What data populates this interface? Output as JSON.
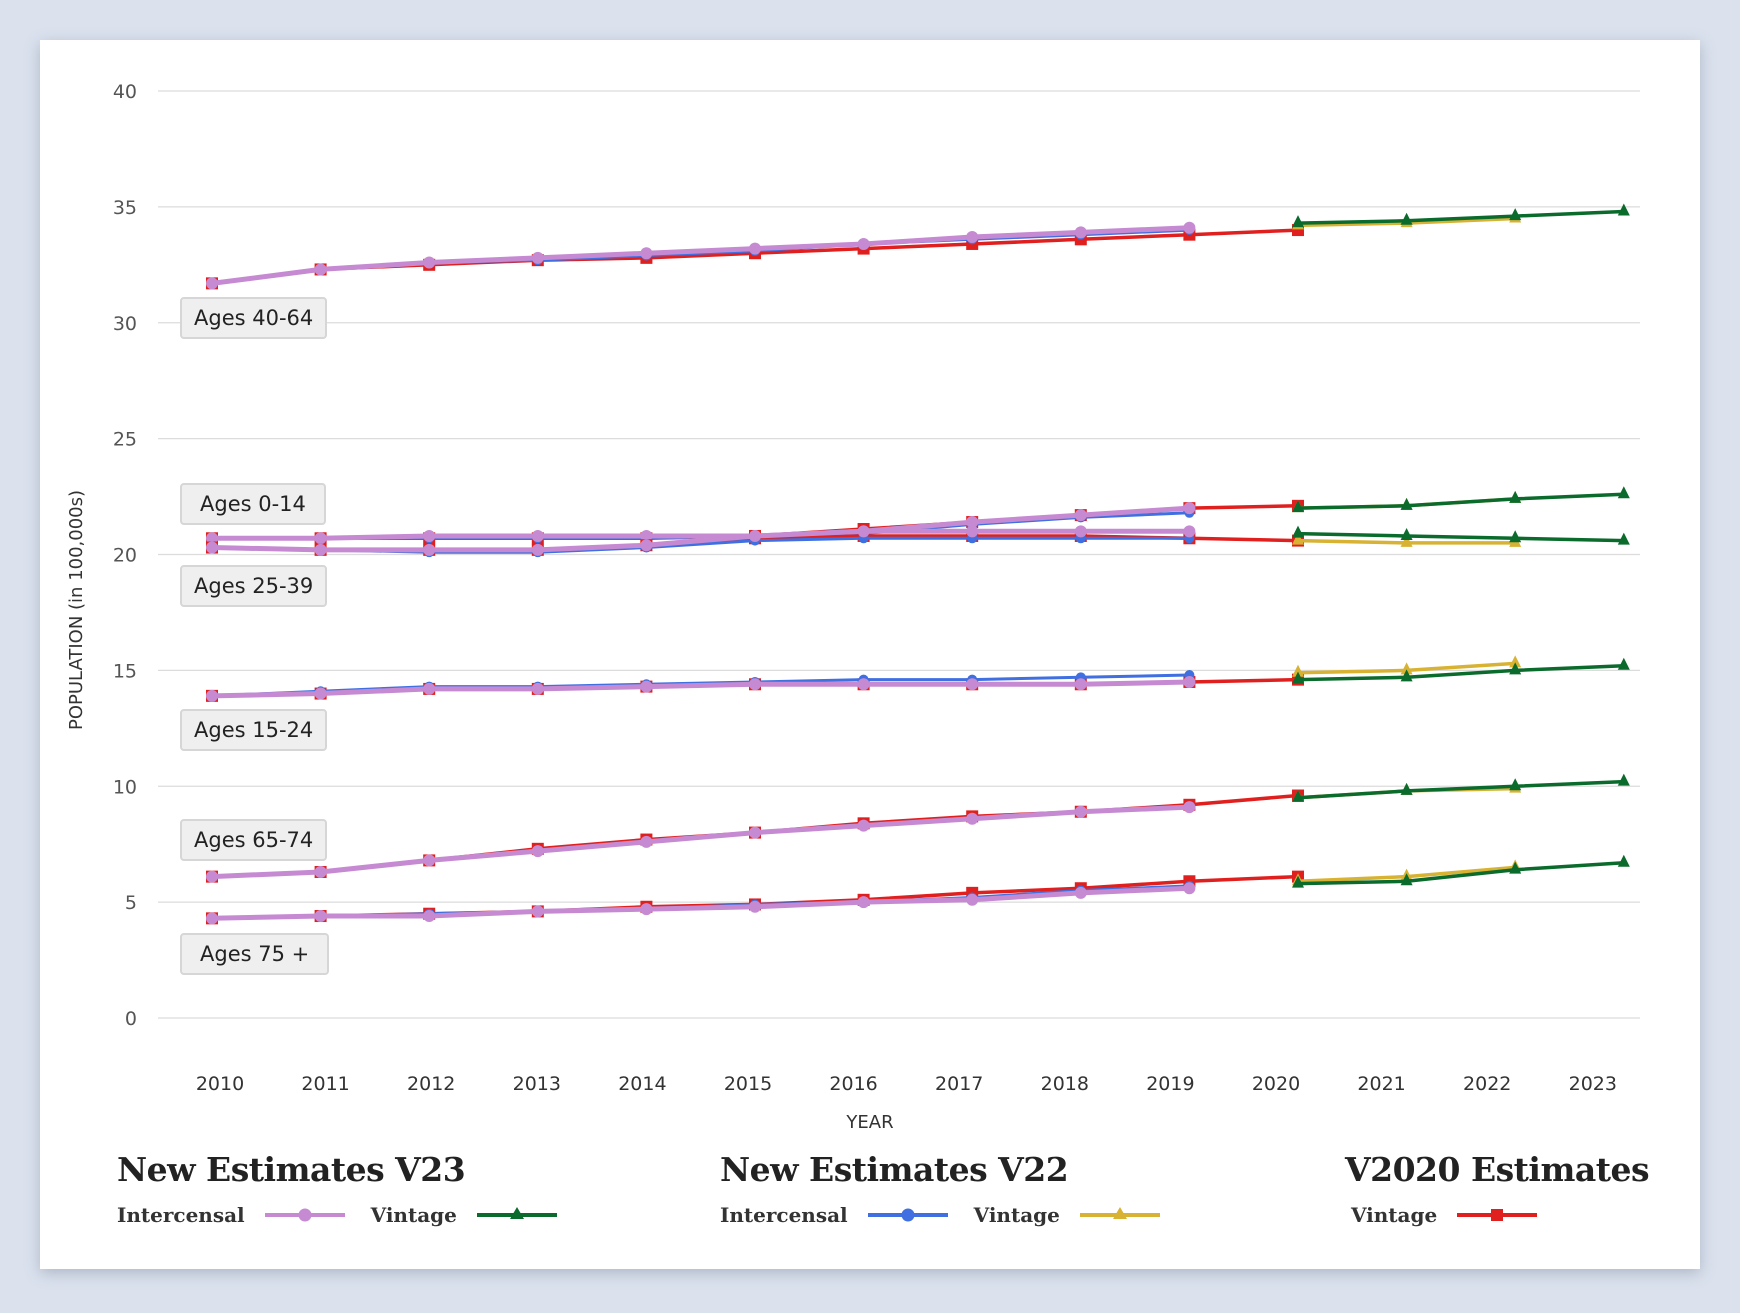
{
  "chart_data": {
    "type": "line",
    "title": "",
    "xlabel": "YEAR",
    "ylabel": "POPULATION (in 100,000s)",
    "ylim": [
      0,
      40
    ],
    "yticks": [
      0,
      5,
      10,
      15,
      20,
      25,
      30,
      35,
      40
    ],
    "x_tick_labels": [
      "2010",
      "2011",
      "2012",
      "2013",
      "2014",
      "2015",
      "2016",
      "2017",
      "2018",
      "2019",
      "2020",
      "2021",
      "2022",
      "2023"
    ],
    "grid": true,
    "legend_position": "bottom",
    "series_styles": {
      "v23_intercensal": {
        "name": "New Estimates V23 – Intercensal",
        "color": "#c58ad2",
        "marker": "circle"
      },
      "v23_vintage": {
        "name": "New Estimates V23 – Vintage",
        "color": "#0b6b2c",
        "marker": "triangle"
      },
      "v22_intercensal": {
        "name": "New Estimates V22 – Intercensal",
        "color": "#3f6fe0",
        "marker": "circle"
      },
      "v22_vintage": {
        "name": "New Estimates V22 – Vintage",
        "color": "#d8b232",
        "marker": "triangle"
      },
      "v2020_vintage": {
        "name": "V2020 Estimates – Vintage",
        "color": "#e0201f",
        "marker": "square"
      }
    },
    "groups": [
      {
        "label": "Ages 40-64",
        "series": {
          "v2020_vintage": {
            "x": [
              2010,
              2011,
              2012,
              2013,
              2014,
              2015,
              2016,
              2017,
              2018,
              2019,
              2020
            ],
            "y": [
              31.7,
              32.3,
              32.5,
              32.7,
              32.8,
              33.0,
              33.2,
              33.4,
              33.6,
              33.8,
              34.0
            ]
          },
          "v22_intercensal": {
            "x": [
              2010,
              2011,
              2012,
              2013,
              2014,
              2015,
              2016,
              2017,
              2018,
              2019
            ],
            "y": [
              31.7,
              32.3,
              32.6,
              32.7,
              32.9,
              33.1,
              33.4,
              33.6,
              33.8,
              34.0
            ]
          },
          "v23_intercensal": {
            "x": [
              2010,
              2011,
              2012,
              2013,
              2014,
              2015,
              2016,
              2017,
              2018,
              2019
            ],
            "y": [
              31.7,
              32.3,
              32.6,
              32.8,
              33.0,
              33.2,
              33.4,
              33.7,
              33.9,
              34.1
            ]
          },
          "v22_vintage": {
            "x": [
              2020,
              2021,
              2022
            ],
            "y": [
              34.2,
              34.3,
              34.5
            ]
          },
          "v23_vintage": {
            "x": [
              2020,
              2021,
              2022,
              2023
            ],
            "y": [
              34.3,
              34.4,
              34.6,
              34.8
            ]
          }
        }
      },
      {
        "label": "Ages 0-14",
        "series": {
          "v2020_vintage": {
            "x": [
              2010,
              2011,
              2012,
              2013,
              2014,
              2015,
              2016,
              2017,
              2018,
              2019,
              2020
            ],
            "y": [
              20.7,
              20.7,
              20.7,
              20.7,
              20.7,
              20.8,
              21.1,
              21.4,
              21.7,
              22.0,
              22.1
            ]
          },
          "v22_intercensal": {
            "x": [
              2010,
              2011,
              2012,
              2013,
              2014,
              2015,
              2016,
              2017,
              2018,
              2019
            ],
            "y": [
              20.7,
              20.7,
              20.7,
              20.7,
              20.7,
              20.8,
              20.9,
              21.3,
              21.6,
              21.8
            ]
          },
          "v23_intercensal": {
            "x": [
              2010,
              2011,
              2012,
              2013,
              2014,
              2015,
              2016,
              2017,
              2018,
              2019
            ],
            "y": [
              20.7,
              20.7,
              20.8,
              20.8,
              20.8,
              20.8,
              21.0,
              21.4,
              21.7,
              22.0
            ]
          },
          "v22_vintage": {
            "x": [
              2020,
              2021,
              2022
            ],
            "y": [
              22.0,
              22.1,
              22.4
            ]
          },
          "v23_vintage": {
            "x": [
              2020,
              2021,
              2022,
              2023
            ],
            "y": [
              22.0,
              22.1,
              22.4,
              22.6
            ]
          }
        }
      },
      {
        "label": "Ages 25-39",
        "series": {
          "v2020_vintage": {
            "x": [
              2010,
              2011,
              2012,
              2013,
              2014,
              2015,
              2016,
              2017,
              2018,
              2019,
              2020
            ],
            "y": [
              20.3,
              20.2,
              20.2,
              20.2,
              20.4,
              20.7,
              20.8,
              20.8,
              20.8,
              20.7,
              20.6
            ]
          },
          "v22_intercensal": {
            "x": [
              2010,
              2011,
              2012,
              2013,
              2014,
              2015,
              2016,
              2017,
              2018,
              2019
            ],
            "y": [
              20.3,
              20.2,
              20.1,
              20.1,
              20.3,
              20.6,
              20.7,
              20.7,
              20.7,
              20.7
            ]
          },
          "v23_intercensal": {
            "x": [
              2010,
              2011,
              2012,
              2013,
              2014,
              2015,
              2016,
              2017,
              2018,
              2019
            ],
            "y": [
              20.3,
              20.2,
              20.2,
              20.2,
              20.4,
              20.8,
              21.0,
              21.0,
              21.0,
              21.0
            ]
          },
          "v22_vintage": {
            "x": [
              2020,
              2021,
              2022
            ],
            "y": [
              20.6,
              20.5,
              20.5
            ]
          },
          "v23_vintage": {
            "x": [
              2020,
              2021,
              2022,
              2023
            ],
            "y": [
              20.9,
              20.8,
              20.7,
              20.6
            ]
          }
        }
      },
      {
        "label": "Ages 15-24",
        "series": {
          "v2020_vintage": {
            "x": [
              2010,
              2011,
              2012,
              2013,
              2014,
              2015,
              2016,
              2017,
              2018,
              2019,
              2020
            ],
            "y": [
              13.9,
              14.0,
              14.2,
              14.2,
              14.3,
              14.4,
              14.4,
              14.4,
              14.4,
              14.5,
              14.6
            ]
          },
          "v22_intercensal": {
            "x": [
              2010,
              2011,
              2012,
              2013,
              2014,
              2015,
              2016,
              2017,
              2018,
              2019
            ],
            "y": [
              13.9,
              14.1,
              14.3,
              14.3,
              14.4,
              14.5,
              14.6,
              14.6,
              14.7,
              14.8
            ]
          },
          "v23_intercensal": {
            "x": [
              2010,
              2011,
              2012,
              2013,
              2014,
              2015,
              2016,
              2017,
              2018,
              2019
            ],
            "y": [
              13.9,
              14.0,
              14.2,
              14.2,
              14.3,
              14.4,
              14.4,
              14.4,
              14.4,
              14.5
            ]
          },
          "v22_vintage": {
            "x": [
              2020,
              2021,
              2022
            ],
            "y": [
              14.9,
              15.0,
              15.3
            ]
          },
          "v23_vintage": {
            "x": [
              2020,
              2021,
              2022,
              2023
            ],
            "y": [
              14.6,
              14.7,
              15.0,
              15.2
            ]
          }
        }
      },
      {
        "label": "Ages 65-74",
        "series": {
          "v2020_vintage": {
            "x": [
              2010,
              2011,
              2012,
              2013,
              2014,
              2015,
              2016,
              2017,
              2018,
              2019,
              2020
            ],
            "y": [
              6.1,
              6.3,
              6.8,
              7.3,
              7.7,
              8.0,
              8.4,
              8.7,
              8.9,
              9.2,
              9.6
            ]
          },
          "v22_intercensal": {
            "x": [
              2010,
              2011,
              2012,
              2013,
              2014,
              2015,
              2016,
              2017,
              2018,
              2019
            ],
            "y": [
              6.1,
              6.3,
              6.8,
              7.2,
              7.6,
              8.0,
              8.3,
              8.6,
              8.9,
              9.1
            ]
          },
          "v23_intercensal": {
            "x": [
              2010,
              2011,
              2012,
              2013,
              2014,
              2015,
              2016,
              2017,
              2018,
              2019
            ],
            "y": [
              6.1,
              6.3,
              6.8,
              7.2,
              7.6,
              8.0,
              8.3,
              8.6,
              8.9,
              9.1
            ]
          },
          "v22_vintage": {
            "x": [
              2020,
              2021,
              2022
            ],
            "y": [
              9.5,
              9.8,
              9.9
            ]
          },
          "v23_vintage": {
            "x": [
              2020,
              2021,
              2022,
              2023
            ],
            "y": [
              9.5,
              9.8,
              10.0,
              10.2
            ]
          }
        }
      },
      {
        "label": "Ages 75 +",
        "series": {
          "v2020_vintage": {
            "x": [
              2010,
              2011,
              2012,
              2013,
              2014,
              2015,
              2016,
              2017,
              2018,
              2019,
              2020
            ],
            "y": [
              4.3,
              4.4,
              4.5,
              4.6,
              4.8,
              4.9,
              5.1,
              5.4,
              5.6,
              5.9,
              6.1
            ]
          },
          "v22_intercensal": {
            "x": [
              2010,
              2011,
              2012,
              2013,
              2014,
              2015,
              2016,
              2017,
              2018,
              2019
            ],
            "y": [
              4.3,
              4.4,
              4.5,
              4.6,
              4.7,
              4.9,
              5.0,
              5.2,
              5.5,
              5.7
            ]
          },
          "v23_intercensal": {
            "x": [
              2010,
              2011,
              2012,
              2013,
              2014,
              2015,
              2016,
              2017,
              2018,
              2019
            ],
            "y": [
              4.3,
              4.4,
              4.4,
              4.6,
              4.7,
              4.8,
              5.0,
              5.1,
              5.4,
              5.6
            ]
          },
          "v22_vintage": {
            "x": [
              2020,
              2021,
              2022
            ],
            "y": [
              5.9,
              6.1,
              6.5
            ]
          },
          "v23_vintage": {
            "x": [
              2020,
              2021,
              2022,
              2023
            ],
            "y": [
              5.8,
              5.9,
              6.4,
              6.7
            ]
          }
        }
      }
    ]
  },
  "band_labels": [
    "Ages 40-64",
    "Ages 0-14",
    "Ages 25-39",
    "Ages 15-24",
    "Ages 65-74",
    "Ages 75 +"
  ],
  "legend": {
    "v23": {
      "title": "New Estimates V23",
      "intercensal_label": "Intercensal",
      "vintage_label": "Vintage"
    },
    "v22": {
      "title": "New Estimates V22",
      "intercensal_label": "Intercensal",
      "vintage_label": "Vintage"
    },
    "v2020": {
      "title": "V2020 Estimates",
      "vintage_label": "Vintage"
    }
  }
}
